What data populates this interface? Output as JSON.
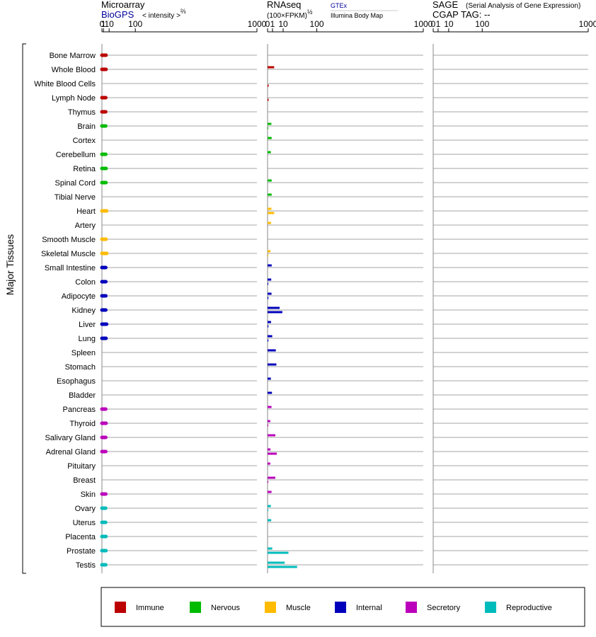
{
  "headers": {
    "microarray": "Microarray",
    "biogps": "BioGPS",
    "intensity": "< intensity >",
    "intensity_exp": "⅔",
    "rnaseq": "RNAseq",
    "rnaseq_unit": "(100×FPKM)",
    "rnaseq_exp": "½",
    "gtex": "GTEx",
    "illumina": "Illumina Body Map",
    "sage": "SAGE",
    "sage_desc": "(Serial Analysis of Gene Expression)",
    "cgap": "CGAP  TAG:  --"
  },
  "axis_labels": [
    "0",
    "1",
    "10",
    "100",
    "1000"
  ],
  "side_label": "Major Tissues",
  "colors": {
    "Immune": "#bb0000",
    "Nervous": "#00bb00",
    "Muscle": "#ffbb00",
    "Internal": "#0000bb",
    "Secretory": "#bb00bb",
    "Reproductive": "#00bbbb"
  },
  "legend": [
    "Immune",
    "Nervous",
    "Muscle",
    "Internal",
    "Secretory",
    "Reproductive"
  ],
  "chart_data": {
    "type": "bar",
    "scale": "power",
    "x_ticks": [
      0,
      1,
      10,
      100,
      1000
    ],
    "panels": [
      "Microarray",
      "RNAseq",
      "SAGE"
    ],
    "series": [
      {
        "name": "Microarray (BioGPS)",
        "panel": "Microarray"
      },
      {
        "name": "GTEx",
        "panel": "RNAseq"
      },
      {
        "name": "Illumina Body Map",
        "panel": "RNAseq"
      }
    ],
    "tissues": [
      {
        "name": "Bone Marrow",
        "group": "Immune",
        "microarray": 4.3,
        "gtex": null,
        "illumina": null
      },
      {
        "name": "Whole Blood",
        "group": "Immune",
        "microarray": 4.3,
        "gtex": 1.8,
        "illumina": null
      },
      {
        "name": "White Blood Cells",
        "group": "Immune",
        "microarray": null,
        "gtex": null,
        "illumina": 0.05
      },
      {
        "name": "Lymph Node",
        "group": "Immune",
        "microarray": 3.9,
        "gtex": null,
        "illumina": 0.05
      },
      {
        "name": "Thymus",
        "group": "Immune",
        "microarray": 3.8,
        "gtex": null,
        "illumina": null
      },
      {
        "name": "Brain",
        "group": "Nervous",
        "microarray": 3.8,
        "gtex": 0.6,
        "illumina": 0.02
      },
      {
        "name": "Cortex",
        "group": "Nervous",
        "microarray": null,
        "gtex": 0.7,
        "illumina": null
      },
      {
        "name": "Cerebellum",
        "group": "Nervous",
        "microarray": 3.9,
        "gtex": 0.45,
        "illumina": null
      },
      {
        "name": "Retina",
        "group": "Nervous",
        "microarray": 4.4,
        "gtex": null,
        "illumina": null
      },
      {
        "name": "Spinal Cord",
        "group": "Nervous",
        "microarray": 4.2,
        "gtex": 0.7,
        "illumina": null
      },
      {
        "name": "Tibial Nerve",
        "group": "Nervous",
        "microarray": null,
        "gtex": 0.7,
        "illumina": null
      },
      {
        "name": "Heart",
        "group": "Muscle",
        "microarray": 5.3,
        "gtex": 0.6,
        "illumina": 1.8
      },
      {
        "name": "Artery",
        "group": "Muscle",
        "microarray": null,
        "gtex": 0.5,
        "illumina": null
      },
      {
        "name": "Smooth Muscle",
        "group": "Muscle",
        "microarray": 4.2,
        "gtex": null,
        "illumina": null
      },
      {
        "name": "Skeletal Muscle",
        "group": "Muscle",
        "microarray": 5.5,
        "gtex": 0.35,
        "illumina": 0.02
      },
      {
        "name": "Small Intestine",
        "group": "Internal",
        "microarray": 3.9,
        "gtex": 0.7,
        "illumina": null
      },
      {
        "name": "Colon",
        "group": "Internal",
        "microarray": 4.0,
        "gtex": 0.55,
        "illumina": 0.02
      },
      {
        "name": "Adipocyte",
        "group": "Internal",
        "microarray": 4.0,
        "gtex": 0.65,
        "illumina": 0.03
      },
      {
        "name": "Kidney",
        "group": "Internal",
        "microarray": 3.9,
        "gtex": 6.0,
        "illumina": 9.0
      },
      {
        "name": "Liver",
        "group": "Internal",
        "microarray": 5.3,
        "gtex": 0.5,
        "illumina": 0.03
      },
      {
        "name": "Lung",
        "group": "Internal",
        "microarray": 4.3,
        "gtex": 0.9,
        "illumina": 0.03
      },
      {
        "name": "Spleen",
        "group": "Internal",
        "microarray": null,
        "gtex": 2.8,
        "illumina": null
      },
      {
        "name": "Stomach",
        "group": "Internal",
        "microarray": null,
        "gtex": 3.2,
        "illumina": null
      },
      {
        "name": "Esophagus",
        "group": "Internal",
        "microarray": null,
        "gtex": 0.45,
        "illumina": null
      },
      {
        "name": "Bladder",
        "group": "Internal",
        "microarray": null,
        "gtex": 0.8,
        "illumina": null
      },
      {
        "name": "Pancreas",
        "group": "Secretory",
        "microarray": 3.8,
        "gtex": 0.65,
        "illumina": null
      },
      {
        "name": "Thyroid",
        "group": "Secretory",
        "microarray": 4.4,
        "gtex": 0.3,
        "illumina": 0.02
      },
      {
        "name": "Salivary Gland",
        "group": "Secretory",
        "microarray": 3.9,
        "gtex": 2.5,
        "illumina": null
      },
      {
        "name": "Adrenal Gland",
        "group": "Secretory",
        "microarray": 3.9,
        "gtex": 0.35,
        "illumina": 3.5
      },
      {
        "name": "Pituitary",
        "group": "Secretory",
        "microarray": null,
        "gtex": 0.3,
        "illumina": null
      },
      {
        "name": "Breast",
        "group": "Secretory",
        "microarray": null,
        "gtex": 2.5,
        "illumina": 0.02
      },
      {
        "name": "Skin",
        "group": "Secretory",
        "microarray": 3.9,
        "gtex": 0.65,
        "illumina": null
      },
      {
        "name": "Ovary",
        "group": "Reproductive",
        "microarray": 3.7,
        "gtex": 0.45,
        "illumina": 0.02
      },
      {
        "name": "Uterus",
        "group": "Reproductive",
        "microarray": 3.7,
        "gtex": 0.55,
        "illumina": null
      },
      {
        "name": "Placenta",
        "group": "Reproductive",
        "microarray": 4.2,
        "gtex": null,
        "illumina": null
      },
      {
        "name": "Prostate",
        "group": "Reproductive",
        "microarray": 4.2,
        "gtex": 0.9,
        "illumina": 18.0
      },
      {
        "name": "Testis",
        "group": "Reproductive",
        "microarray": 3.8,
        "gtex": 12.0,
        "illumina": 36.0
      }
    ]
  }
}
